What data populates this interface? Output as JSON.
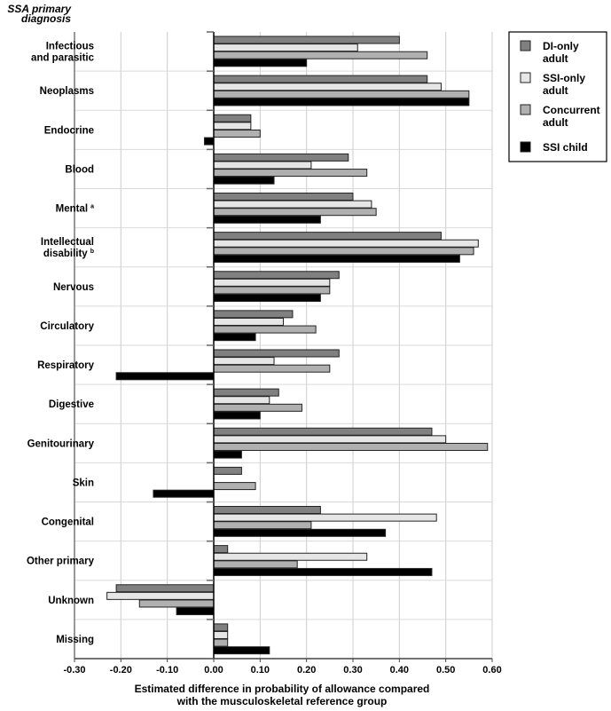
{
  "chart_data": {
    "type": "bar",
    "orientation": "horizontal",
    "ylabel": "SSA primary diagnosis",
    "xlabel": "Estimated difference in probability of allowance compared with the musculoskeletal reference group",
    "xlabel_lines": [
      "Estimated difference in probability of allowance compared",
      "with the musculoskeletal reference group"
    ],
    "ylabel_lines": [
      "SSA primary",
      "diagnosis"
    ],
    "xlim": [
      -0.3,
      0.6
    ],
    "xticks": [
      -0.3,
      -0.2,
      -0.1,
      0.0,
      0.1,
      0.2,
      0.3,
      0.4,
      0.5,
      0.6
    ],
    "xtick_labels": [
      "-0.30",
      "-0.20",
      "-0.10",
      "0.00",
      "0.10",
      "0.20",
      "0.30",
      "0.40",
      "0.50",
      "0.60"
    ],
    "grid": true,
    "legend_position": "top-right",
    "categories": [
      {
        "lines": [
          "Infectious",
          "and parasitic"
        ],
        "footnote": ""
      },
      {
        "lines": [
          "Neoplasms"
        ],
        "footnote": ""
      },
      {
        "lines": [
          "Endocrine"
        ],
        "footnote": ""
      },
      {
        "lines": [
          "Blood"
        ],
        "footnote": ""
      },
      {
        "lines": [
          "Mental"
        ],
        "footnote": "a"
      },
      {
        "lines": [
          "Intellectual",
          "disability"
        ],
        "footnote": "b"
      },
      {
        "lines": [
          "Nervous"
        ],
        "footnote": ""
      },
      {
        "lines": [
          "Circulatory"
        ],
        "footnote": ""
      },
      {
        "lines": [
          "Respiratory"
        ],
        "footnote": ""
      },
      {
        "lines": [
          "Digestive"
        ],
        "footnote": ""
      },
      {
        "lines": [
          "Genitourinary"
        ],
        "footnote": ""
      },
      {
        "lines": [
          "Skin"
        ],
        "footnote": ""
      },
      {
        "lines": [
          "Congenital"
        ],
        "footnote": ""
      },
      {
        "lines": [
          "Other primary"
        ],
        "footnote": ""
      },
      {
        "lines": [
          "Unknown"
        ],
        "footnote": ""
      },
      {
        "lines": [
          "Missing"
        ],
        "footnote": ""
      }
    ],
    "series": [
      {
        "name": "DI-only adult",
        "legend_lines": [
          "DI-only",
          "adult"
        ],
        "color": "#808080",
        "values": [
          0.4,
          0.46,
          0.08,
          0.29,
          0.3,
          0.49,
          0.27,
          0.17,
          0.27,
          0.14,
          0.47,
          0.06,
          0.23,
          0.03,
          -0.21,
          0.03
        ]
      },
      {
        "name": "SSI-only adult",
        "legend_lines": [
          "SSI-only",
          "adult"
        ],
        "color": "#e6e6e6",
        "values": [
          0.31,
          0.49,
          0.08,
          0.21,
          0.34,
          0.57,
          0.25,
          0.15,
          0.13,
          0.12,
          0.5,
          null,
          0.48,
          0.33,
          -0.23,
          0.03
        ]
      },
      {
        "name": "Concurrent adult",
        "legend_lines": [
          "Concurrent",
          "adult"
        ],
        "color": "#b0b0b0",
        "values": [
          0.46,
          0.55,
          0.1,
          0.33,
          0.35,
          0.56,
          0.25,
          0.22,
          0.25,
          0.19,
          0.59,
          0.09,
          0.21,
          0.18,
          -0.16,
          0.03
        ]
      },
      {
        "name": "SSI child",
        "legend_lines": [
          "SSI child"
        ],
        "color": "#000000",
        "values": [
          0.2,
          0.55,
          -0.02,
          0.13,
          0.23,
          0.53,
          0.23,
          0.09,
          -0.21,
          0.1,
          0.06,
          -0.13,
          0.37,
          0.47,
          -0.08,
          0.12
        ]
      }
    ]
  }
}
